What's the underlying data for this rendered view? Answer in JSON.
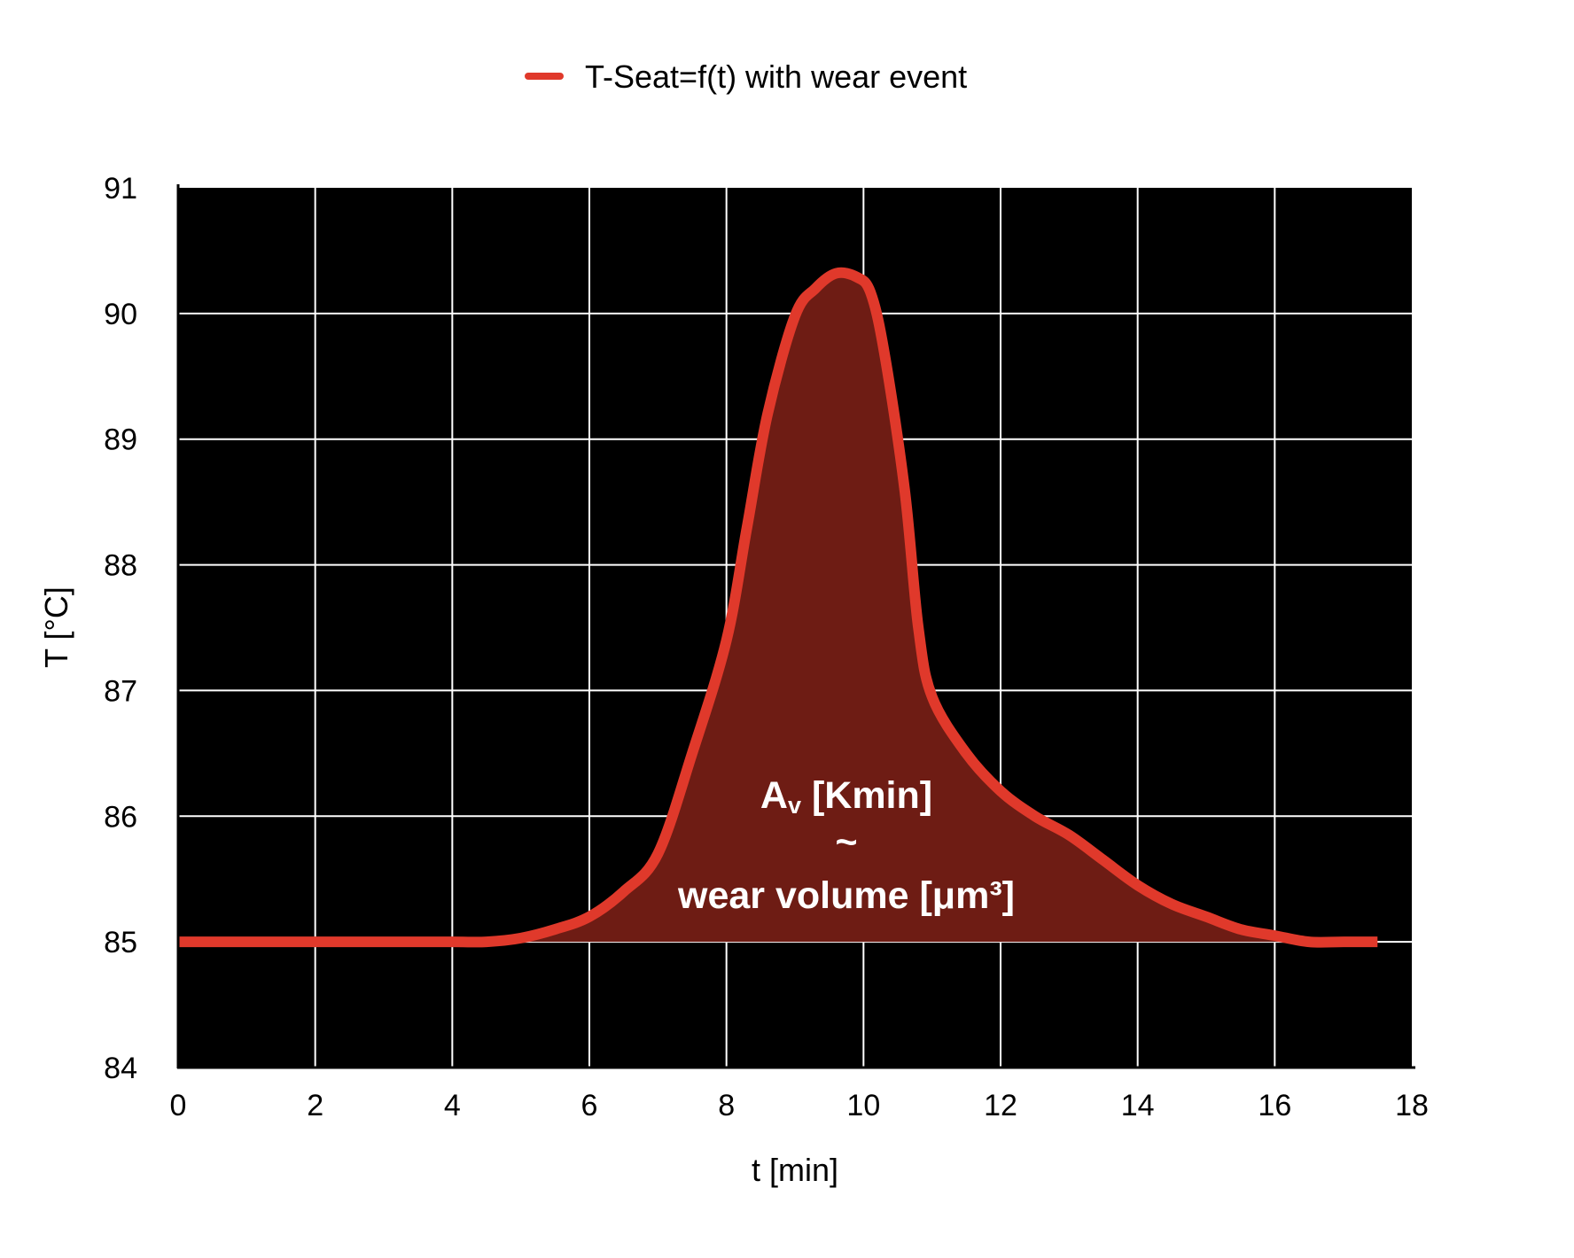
{
  "chart_data": {
    "type": "area",
    "title": "",
    "xlabel": "t [min]",
    "ylabel": "T [°C]",
    "xlim": [
      0,
      18
    ],
    "ylim": [
      84,
      91
    ],
    "xticks": [
      0,
      2,
      4,
      6,
      8,
      10,
      12,
      14,
      16,
      18
    ],
    "yticks": [
      84,
      85,
      86,
      87,
      88,
      89,
      90,
      91
    ],
    "grid": true,
    "legend": "top-center",
    "plot_background": "#000000",
    "grid_color": "#ffffff",
    "baseline": 85,
    "series": [
      {
        "name": "T-Seat=f(t) with wear event",
        "color": "#e0392b",
        "fill_color": "#6e1c14",
        "x": [
          0,
          1,
          2,
          3,
          4,
          4.5,
          5,
          5.5,
          6,
          6.5,
          7,
          7.5,
          8,
          8.3,
          8.6,
          9,
          9.3,
          9.6,
          9.9,
          10.1,
          10.3,
          10.6,
          10.8,
          11,
          11.5,
          12,
          12.5,
          13,
          13.5,
          14,
          14.5,
          15,
          15.5,
          16,
          16.5,
          17,
          17.5
        ],
        "values": [
          85,
          85,
          85,
          85,
          85,
          85,
          85.03,
          85.1,
          85.2,
          85.4,
          85.7,
          86.5,
          87.4,
          88.3,
          89.2,
          89.98,
          90.2,
          90.32,
          90.29,
          90.17,
          89.7,
          88.6,
          87.5,
          86.95,
          86.5,
          86.2,
          86.0,
          85.85,
          85.65,
          85.45,
          85.3,
          85.2,
          85.1,
          85.05,
          85.0,
          85.0,
          85.0
        ]
      }
    ],
    "annotations": {
      "line1_main": "A",
      "line1_sub": "v",
      "line1_rest": " [Kmin]",
      "line2": "~",
      "line3": "wear volume [μm³]"
    }
  }
}
